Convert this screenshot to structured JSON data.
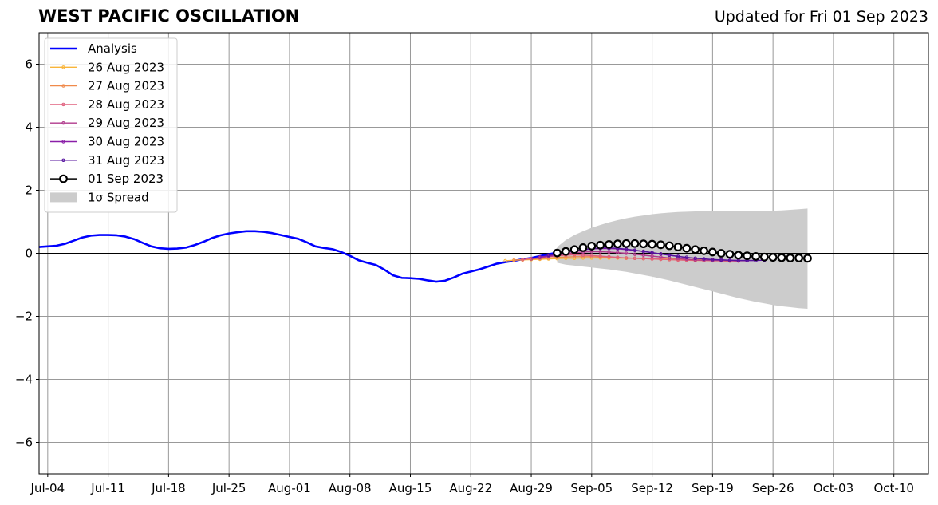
{
  "chart_data": {
    "type": "line",
    "title": "WEST PACIFIC OSCILLATION",
    "subtitle": "Updated for Fri 01 Sep 2023",
    "ylim": [
      -7,
      7
    ],
    "yticks": [
      -6,
      -4,
      -2,
      0,
      2,
      4,
      6
    ],
    "ytick_labels": [
      "−6",
      "−4",
      "−2",
      "0",
      "2",
      "4",
      "6"
    ],
    "xlim": [
      "2023-07-03",
      "2023-10-14"
    ],
    "xticks": [
      "2023-07-04",
      "2023-07-11",
      "2023-07-18",
      "2023-07-25",
      "2023-08-01",
      "2023-08-08",
      "2023-08-15",
      "2023-08-22",
      "2023-08-29",
      "2023-09-05",
      "2023-09-12",
      "2023-09-19",
      "2023-09-26",
      "2023-10-03",
      "2023-10-10"
    ],
    "xtick_labels": [
      "Jul-04",
      "Jul-11",
      "Jul-18",
      "Jul-25",
      "Aug-01",
      "Aug-08",
      "Aug-15",
      "Aug-22",
      "Aug-29",
      "Sep-05",
      "Sep-12",
      "Sep-19",
      "Sep-26",
      "Oct-03",
      "Oct-10"
    ],
    "grid": true,
    "legend_position": "top-left",
    "legend": {
      "analysis": "Analysis",
      "spread": "1σ Spread"
    },
    "colors": {
      "analysis": "#0000ff",
      "spread": "#cccccc",
      "current": "#000000"
    },
    "analysis": {
      "start": "2023-07-03",
      "values": [
        0.2,
        0.22,
        0.24,
        0.3,
        0.4,
        0.5,
        0.56,
        0.58,
        0.58,
        0.57,
        0.53,
        0.45,
        0.33,
        0.22,
        0.16,
        0.14,
        0.15,
        0.18,
        0.26,
        0.36,
        0.48,
        0.57,
        0.63,
        0.67,
        0.7,
        0.7,
        0.68,
        0.64,
        0.58,
        0.52,
        0.46,
        0.35,
        0.22,
        0.17,
        0.13,
        0.04,
        -0.08,
        -0.22,
        -0.3,
        -0.37,
        -0.52,
        -0.7,
        -0.78,
        -0.79,
        -0.81,
        -0.86,
        -0.9,
        -0.87,
        -0.77,
        -0.65,
        -0.58,
        -0.51,
        -0.42,
        -0.33,
        -0.28,
        -0.24,
        -0.19,
        -0.15,
        -0.09,
        -0.03,
        0.02
      ]
    },
    "forecasts": [
      {
        "name": "26 Aug 2023",
        "color": "#f9b53a",
        "start": "2023-08-26",
        "values": [
          -0.24,
          -0.22,
          -0.21,
          -0.2,
          -0.19,
          -0.18,
          -0.17,
          -0.16,
          -0.16,
          -0.15,
          -0.15,
          -0.15,
          -0.15,
          -0.15,
          -0.16,
          -0.16,
          -0.17,
          -0.17,
          -0.18,
          -0.18,
          -0.19,
          -0.2,
          -0.2,
          -0.21,
          -0.21,
          -0.21
        ]
      },
      {
        "name": "27 Aug 2023",
        "color": "#f08a4b",
        "start": "2023-08-27",
        "values": [
          -0.22,
          -0.2,
          -0.18,
          -0.17,
          -0.15,
          -0.13,
          -0.12,
          -0.11,
          -0.11,
          -0.11,
          -0.12,
          -0.13,
          -0.14,
          -0.15,
          -0.16,
          -0.17,
          -0.18,
          -0.19,
          -0.2,
          -0.21,
          -0.22,
          -0.23,
          -0.23,
          -0.24,
          -0.24,
          -0.25
        ]
      },
      {
        "name": "28 Aug 2023",
        "color": "#e0607e",
        "start": "2023-08-28",
        "values": [
          -0.2,
          -0.17,
          -0.14,
          -0.11,
          -0.08,
          -0.06,
          -0.05,
          -0.06,
          -0.07,
          -0.09,
          -0.11,
          -0.13,
          -0.15,
          -0.16,
          -0.17,
          -0.18,
          -0.19,
          -0.2,
          -0.21,
          -0.22,
          -0.22,
          -0.23,
          -0.23,
          -0.24,
          -0.24,
          -0.25
        ]
      },
      {
        "name": "29 Aug 2023",
        "color": "#b03a8c",
        "start": "2023-08-29",
        "values": [
          -0.18,
          -0.14,
          -0.1,
          -0.06,
          -0.02,
          0.02,
          0.04,
          0.05,
          0.05,
          0.04,
          0.02,
          0.0,
          -0.03,
          -0.06,
          -0.09,
          -0.12,
          -0.15,
          -0.17,
          -0.19,
          -0.21,
          -0.22,
          -0.23,
          -0.23,
          -0.24,
          -0.24,
          -0.24
        ]
      },
      {
        "name": "30 Aug 2023",
        "color": "#8a1fa8",
        "start": "2023-08-30",
        "values": [
          -0.12,
          -0.08,
          -0.03,
          0.02,
          0.07,
          0.11,
          0.14,
          0.15,
          0.15,
          0.14,
          0.12,
          0.09,
          0.06,
          0.02,
          -0.02,
          -0.06,
          -0.1,
          -0.13,
          -0.16,
          -0.18,
          -0.2,
          -0.21,
          -0.22,
          -0.23,
          -0.23,
          -0.23
        ]
      },
      {
        "name": "31 Aug 2023",
        "color": "#55129e",
        "start": "2023-08-31",
        "values": [
          -0.06,
          -0.02,
          0.03,
          0.08,
          0.12,
          0.15,
          0.17,
          0.17,
          0.16,
          0.13,
          0.1,
          0.06,
          0.02,
          -0.02,
          -0.06,
          -0.1,
          -0.13,
          -0.16,
          -0.18,
          -0.2,
          -0.21,
          -0.22,
          -0.23,
          -0.23,
          -0.23,
          -0.22
        ]
      },
      {
        "name": "01 Sep 2023",
        "color": "#000000",
        "start": "2023-09-01",
        "values": [
          0.01,
          0.06,
          0.12,
          0.18,
          0.23,
          0.26,
          0.28,
          0.3,
          0.31,
          0.31,
          0.3,
          0.29,
          0.27,
          0.24,
          0.2,
          0.16,
          0.12,
          0.08,
          0.04,
          0.0,
          -0.03,
          -0.06,
          -0.08,
          -0.1,
          -0.12,
          -0.13,
          -0.14,
          -0.15,
          -0.15,
          -0.16
        ]
      }
    ],
    "spread": {
      "start": "2023-09-01",
      "upper": [
        0.2,
        0.42,
        0.58,
        0.7,
        0.81,
        0.9,
        0.98,
        1.05,
        1.11,
        1.16,
        1.2,
        1.24,
        1.27,
        1.29,
        1.31,
        1.32,
        1.33,
        1.33,
        1.33,
        1.33,
        1.33,
        1.33,
        1.33,
        1.33,
        1.34,
        1.35,
        1.36,
        1.38,
        1.4,
        1.42
      ],
      "lower": [
        -0.3,
        -0.36,
        -0.39,
        -0.42,
        -0.45,
        -0.48,
        -0.51,
        -0.55,
        -0.59,
        -0.64,
        -0.69,
        -0.74,
        -0.8,
        -0.86,
        -0.93,
        -1.0,
        -1.07,
        -1.14,
        -1.21,
        -1.28,
        -1.35,
        -1.42,
        -1.48,
        -1.54,
        -1.59,
        -1.64,
        -1.68,
        -1.71,
        -1.74,
        -1.76
      ]
    }
  }
}
